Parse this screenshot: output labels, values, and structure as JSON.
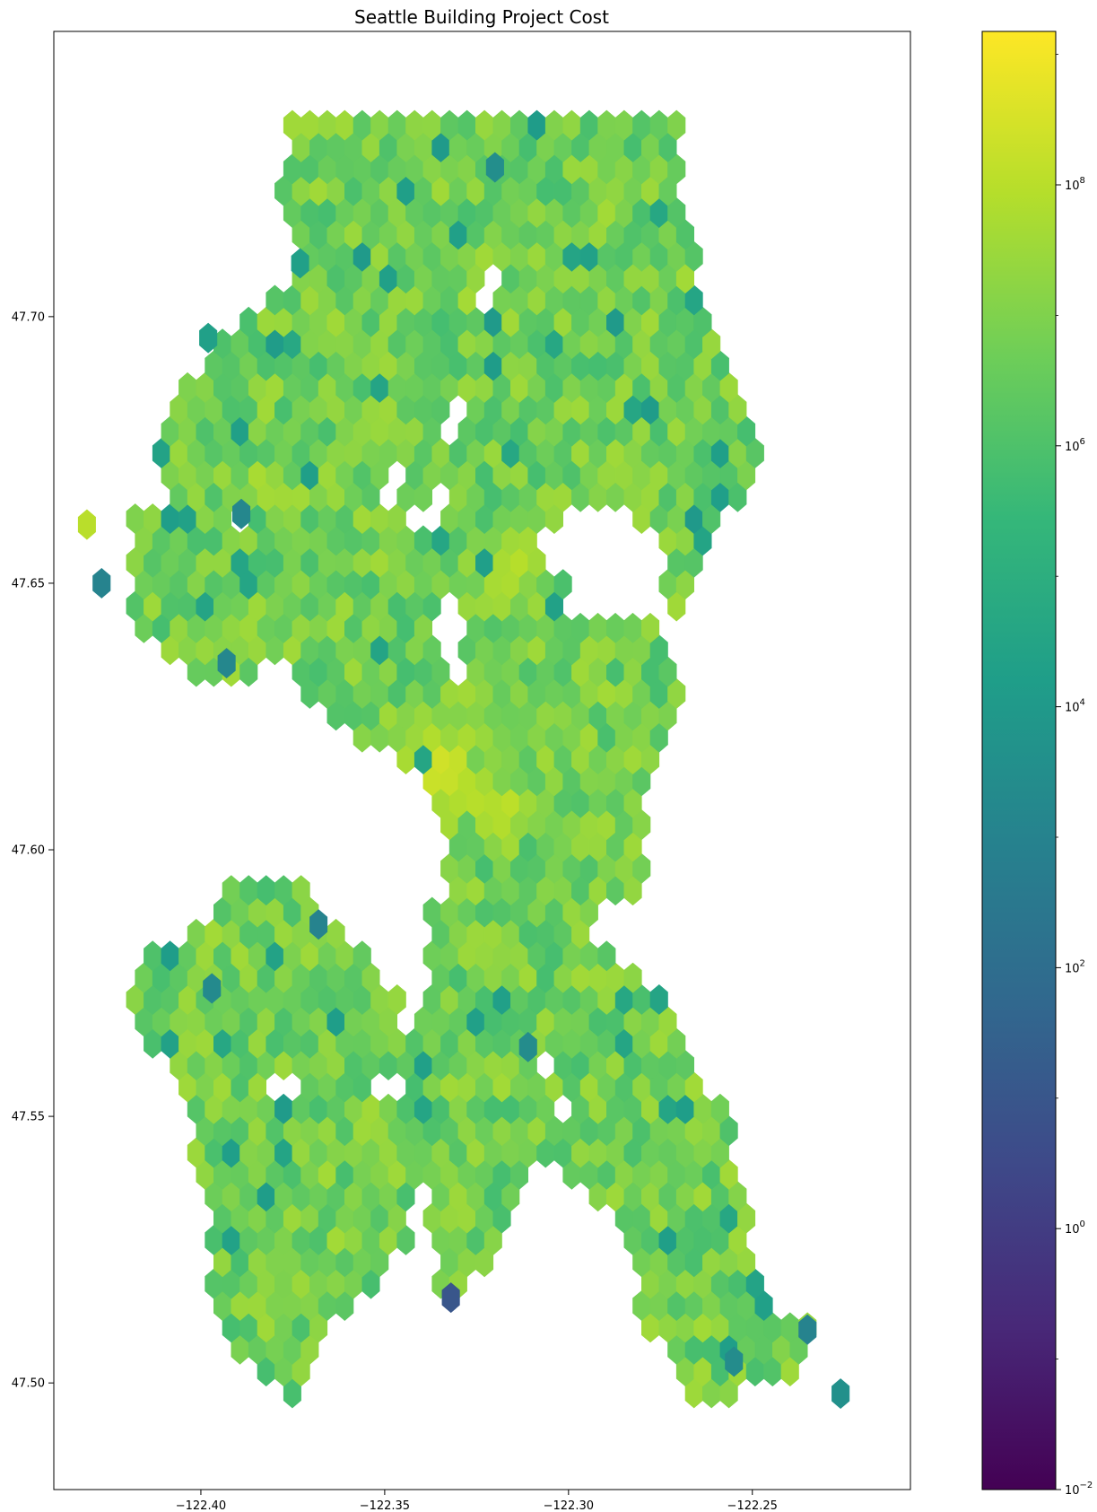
{
  "chart_data": {
    "type": "heatmap",
    "title": "Seattle Building Project Cost",
    "xlabel": "",
    "ylabel": "",
    "xlim": [
      -122.44,
      -122.207
    ],
    "ylim": [
      47.48,
      47.7535
    ],
    "xticks": [
      -122.4,
      -122.35,
      -122.3,
      -122.25
    ],
    "xtick_labels": [
      "−122.40",
      "−122.35",
      "−122.30",
      "−122.25"
    ],
    "yticks": [
      47.5,
      47.55,
      47.6,
      47.65,
      47.7
    ],
    "ytick_labels": [
      "47.50",
      "47.55",
      "47.60",
      "47.65",
      "47.70"
    ],
    "grid": false,
    "hexbin": {
      "hex_width_deg": 0.00475,
      "row_spacing_deg": 0.0041,
      "bin_hex_counts": {
        "x_min": -122.425,
        "x_max": -122.222,
        "y_min": 47.494,
        "y_max": 47.738
      },
      "land_regions": [
        {
          "name": "north",
          "polygon_lonlat": [
            [
              -122.375,
              47.738
            ],
            [
              -122.34,
              47.739
            ],
            [
              -122.3,
              47.739
            ],
            [
              -122.27,
              47.736
            ],
            [
              -122.268,
              47.718
            ],
            [
              -122.264,
              47.706
            ],
            [
              -122.26,
              47.695
            ],
            [
              -122.253,
              47.684
            ],
            [
              -122.248,
              47.674
            ],
            [
              -122.254,
              47.665
            ],
            [
              -122.262,
              47.661
            ],
            [
              -122.265,
              47.652
            ],
            [
              -122.27,
              47.646
            ],
            [
              -122.275,
              47.642
            ],
            [
              -122.275,
              47.66
            ],
            [
              -122.282,
              47.662
            ],
            [
              -122.296,
              47.664
            ],
            [
              -122.305,
              47.66
            ],
            [
              -122.32,
              47.65
            ],
            [
              -122.33,
              47.648
            ],
            [
              -122.334,
              47.66
            ],
            [
              -122.333,
              47.666
            ],
            [
              -122.345,
              47.662
            ],
            [
              -122.36,
              47.662
            ],
            [
              -122.38,
              47.66
            ],
            [
              -122.395,
              47.663
            ],
            [
              -122.407,
              47.667
            ],
            [
              -122.412,
              47.673
            ],
            [
              -122.413,
              47.68
            ],
            [
              -122.4,
              47.69
            ],
            [
              -122.395,
              47.695
            ],
            [
              -122.385,
              47.703
            ],
            [
              -122.375,
              47.705
            ],
            [
              -122.372,
              47.712
            ],
            [
              -122.378,
              47.722
            ],
            [
              -122.378,
              47.73
            ]
          ]
        },
        {
          "name": "magnolia",
          "polygon_lonlat": [
            [
              -122.418,
              47.665
            ],
            [
              -122.4,
              47.667
            ],
            [
              -122.38,
              47.664
            ],
            [
              -122.372,
              47.658
            ],
            [
              -122.376,
              47.647
            ],
            [
              -122.378,
              47.639
            ],
            [
              -122.384,
              47.634
            ],
            [
              -122.392,
              47.631
            ],
            [
              -122.405,
              47.633
            ],
            [
              -122.418,
              47.643
            ],
            [
              -122.42,
              47.652
            ]
          ]
        },
        {
          "name": "central",
          "polygon_lonlat": [
            [
              -122.38,
              47.664
            ],
            [
              -122.36,
              47.662
            ],
            [
              -122.34,
              47.66
            ],
            [
              -122.32,
              47.657
            ],
            [
              -122.302,
              47.653
            ],
            [
              -122.3,
              47.645
            ],
            [
              -122.29,
              47.642
            ],
            [
              -122.278,
              47.645
            ],
            [
              -122.272,
              47.64
            ],
            [
              -122.27,
              47.628
            ],
            [
              -122.274,
              47.62
            ],
            [
              -122.278,
              47.615
            ],
            [
              -122.278,
              47.598
            ],
            [
              -122.28,
              47.59
            ],
            [
              -122.31,
              47.586
            ],
            [
              -122.33,
              47.59
            ],
            [
              -122.335,
              47.602
            ],
            [
              -122.34,
              47.612
            ],
            [
              -122.352,
              47.62
            ],
            [
              -122.362,
              47.622
            ],
            [
              -122.372,
              47.628
            ],
            [
              -122.38,
              47.636
            ],
            [
              -122.378,
              47.648
            ]
          ]
        },
        {
          "name": "west_seattle",
          "polygon_lonlat": [
            [
              -122.42,
              47.578
            ],
            [
              -122.405,
              47.584
            ],
            [
              -122.392,
              47.593
            ],
            [
              -122.378,
              47.596
            ],
            [
              -122.366,
              47.588
            ],
            [
              -122.352,
              47.578
            ],
            [
              -122.34,
              47.57
            ],
            [
              -122.336,
              47.56
            ],
            [
              -122.336,
              47.545
            ],
            [
              -122.34,
              47.535
            ],
            [
              -122.345,
              47.525
            ],
            [
              -122.35,
              47.518
            ],
            [
              -122.362,
              47.512
            ],
            [
              -122.368,
              47.505
            ],
            [
              -122.372,
              47.497
            ],
            [
              -122.382,
              47.5
            ],
            [
              -122.39,
              47.505
            ],
            [
              -122.398,
              47.515
            ],
            [
              -122.398,
              47.528
            ],
            [
              -122.4,
              47.54
            ],
            [
              -122.405,
              47.552
            ],
            [
              -122.412,
              47.562
            ],
            [
              -122.418,
              47.57
            ]
          ]
        },
        {
          "name": "south",
          "polygon_lonlat": [
            [
              -122.338,
              47.59
            ],
            [
              -122.32,
              47.59
            ],
            [
              -122.3,
              47.588
            ],
            [
              -122.285,
              47.58
            ],
            [
              -122.275,
              47.572
            ],
            [
              -122.268,
              47.563
            ],
            [
              -122.258,
              47.552
            ],
            [
              -122.252,
              47.538
            ],
            [
              -122.25,
              47.522
            ],
            [
              -122.246,
              47.513
            ],
            [
              -122.233,
              47.51
            ],
            [
              -122.237,
              47.502
            ],
            [
              -122.256,
              47.497
            ],
            [
              -122.262,
              47.494
            ],
            [
              -122.27,
              47.502
            ],
            [
              -122.28,
              47.512
            ],
            [
              -122.285,
              47.526
            ],
            [
              -122.29,
              47.534
            ],
            [
              -122.302,
              47.54
            ],
            [
              -122.31,
              47.54
            ],
            [
              -122.318,
              47.53
            ],
            [
              -122.328,
              47.515
            ],
            [
              -122.336,
              47.516
            ],
            [
              -122.338,
              47.53
            ],
            [
              -122.338,
              47.56
            ]
          ]
        }
      ],
      "holes_lonlat": [
        [
          -122.331,
          47.68
        ],
        [
          -122.337,
          47.664
        ],
        [
          -122.348,
          47.668
        ],
        [
          -122.288,
          47.65
        ],
        [
          -122.296,
          47.66
        ],
        [
          -122.332,
          47.643
        ],
        [
          -122.332,
          47.636
        ],
        [
          -122.39,
          47.662
        ],
        [
          -122.345,
          47.568
        ],
        [
          -122.349,
          47.556
        ],
        [
          -122.378,
          47.556
        ],
        [
          -122.305,
          47.56
        ],
        [
          -122.302,
          47.552
        ],
        [
          -122.322,
          47.706
        ]
      ],
      "highlight_regions": [
        {
          "name": "downtown",
          "center_lonlat": [
            -122.335,
            47.614
          ],
          "radius_deg": 0.016,
          "log10_value": 8.9
        },
        {
          "name": "capitol_hill",
          "center_lonlat": [
            -122.318,
            47.608
          ],
          "radius_deg": 0.012,
          "log10_value": 8.5
        },
        {
          "name": "slu_uw",
          "center_lonlat": [
            -122.315,
            47.652
          ],
          "radius_deg": 0.01,
          "log10_value": 8.4
        },
        {
          "name": "ballard",
          "center_lonlat": [
            -122.383,
            47.668
          ],
          "radius_deg": 0.008,
          "log10_value": 8.3
        },
        {
          "name": "northgate",
          "center_lonlat": [
            -122.323,
            47.706
          ],
          "radius_deg": 0.008,
          "log10_value": 8.1
        }
      ],
      "outliers": [
        {
          "lon": -122.431,
          "lat": 47.661,
          "log10_value": 8.0
        },
        {
          "lon": -122.332,
          "lat": 47.516,
          "log10_value": 1.0
        },
        {
          "lon": -122.226,
          "lat": 47.498,
          "log10_value": 3.6
        },
        {
          "lon": -122.235,
          "lat": 47.51,
          "log10_value": 3.0
        },
        {
          "lon": -122.427,
          "lat": 47.65,
          "log10_value": 3.0
        },
        {
          "lon": -122.32,
          "lat": 47.728,
          "log10_value": 3.5
        },
        {
          "lon": -122.389,
          "lat": 47.663,
          "log10_value": 3.2
        },
        {
          "lon": -122.397,
          "lat": 47.574,
          "log10_value": 3.3
        },
        {
          "lon": -122.393,
          "lat": 47.635,
          "log10_value": 3.2
        },
        {
          "lon": -122.368,
          "lat": 47.586,
          "log10_value": 3.0
        },
        {
          "lon": -122.311,
          "lat": 47.563,
          "log10_value": 3.4
        },
        {
          "lon": -122.255,
          "lat": 47.504,
          "log10_value": 3.4
        },
        {
          "lon": -122.398,
          "lat": 47.696,
          "log10_value": 4.3
        },
        {
          "lon": -122.373,
          "lat": 47.71,
          "log10_value": 4.3
        }
      ],
      "base_log10_value_range": [
        5.8,
        7.6
      ]
    },
    "colorbar": {
      "colormap": "viridis",
      "scale": "log",
      "vmin": 0.01,
      "vmax": 1500000000,
      "tick_exponents": [
        -2,
        0,
        2,
        4,
        6,
        8
      ],
      "tick_label_base": "10"
    }
  },
  "colors": {
    "viridis_stops": [
      "#440154",
      "#482878",
      "#3e4989",
      "#31688e",
      "#26828e",
      "#1f9e89",
      "#35b779",
      "#6ece58",
      "#b5de2b",
      "#fde725"
    ],
    "axis": "#000000",
    "background": "#ffffff"
  }
}
